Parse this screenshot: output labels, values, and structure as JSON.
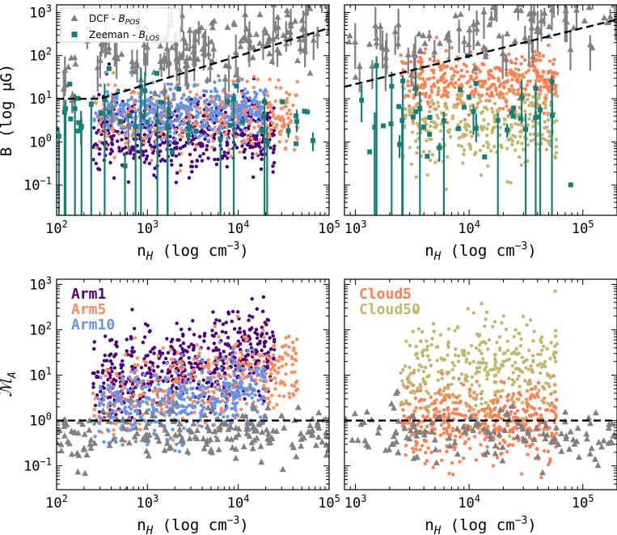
{
  "figure": {
    "panels": [
      "B vs nH (filaments)",
      "B vs nH (clouds)",
      "MA vs nH (filaments)",
      "MA vs nH (clouds)"
    ]
  },
  "colors": {
    "dcf": "#808080",
    "zeeman": "#127f79",
    "arm1": "#4b0082",
    "arm5": "#ff8a5b",
    "arm10": "#6495ed",
    "cloud5": "#ff7f50",
    "cloud50": "#c2b66b"
  },
  "chart_data": [
    {
      "id": "top-left",
      "type": "scatter",
      "title": "",
      "xlabel_base": "n",
      "xlabel_sub": "H",
      "xlabel_unit": " (log cm",
      "xlabel_sup": "−3",
      "xlabel_close": ")",
      "ylabel": "B (log μG)",
      "xscale": "log",
      "yscale": "log",
      "xlim": [
        100,
        100000
      ],
      "ylim": [
        0.02,
        1500
      ],
      "x_ticks": [
        {
          "v": 100,
          "m": "10",
          "e": "2"
        },
        {
          "v": 1000,
          "m": "10",
          "e": "3"
        },
        {
          "v": 10000,
          "m": "10",
          "e": "4"
        },
        {
          "v": 100000,
          "m": "10",
          "e": "5"
        }
      ],
      "y_ticks": [
        {
          "v": 0.1,
          "m": "10",
          "e": "−1"
        },
        {
          "v": 1,
          "m": "10",
          "e": "0"
        },
        {
          "v": 10,
          "m": "10",
          "e": "1"
        },
        {
          "v": 100,
          "m": "10",
          "e": "2"
        },
        {
          "v": 1000,
          "m": "10",
          "e": "3"
        }
      ],
      "legend": {
        "position": "top-left",
        "entries": [
          {
            "label": "DCF - ",
            "sym": "B",
            "sub": "POS",
            "marker": "triangle",
            "color": "dcf"
          },
          {
            "label": "Zeeman - ",
            "sym": "B",
            "sub": "LOS",
            "marker": "square",
            "color": "zeeman"
          }
        ]
      },
      "reference_line": {
        "type": "crutcher",
        "B0": 10,
        "n0": 300,
        "kappa": 0.65,
        "style": "dashed"
      },
      "series": [
        {
          "name": "Arm1",
          "color": "arm1",
          "marker": "circle",
          "n": 520,
          "x_range": [
            250,
            25000
          ],
          "y_median": 1.6,
          "y_spread": 0.45,
          "seed": 11
        },
        {
          "name": "Arm5",
          "color": "arm5",
          "marker": "circle",
          "n": 420,
          "x_range": [
            250,
            45000
          ],
          "y_median": 4.0,
          "y_spread": 0.35,
          "seed": 23
        },
        {
          "name": "Arm10",
          "color": "arm10",
          "marker": "circle",
          "n": 420,
          "x_range": [
            250,
            20000
          ],
          "y_median": 5.0,
          "y_spread": 0.3,
          "seed": 37
        },
        {
          "name": "DCF - BPOS",
          "color": "dcf",
          "marker": "triangle",
          "n": 180,
          "x_range": [
            100,
            100000
          ],
          "y_median": 80,
          "y_spread": 0.45,
          "seed": 51,
          "error_bars": true
        },
        {
          "name": "Zeeman - BLOS",
          "color": "zeeman",
          "marker": "square",
          "n": 55,
          "x_range": [
            100,
            80000
          ],
          "y_median": 4,
          "y_spread": 0.5,
          "seed": 67,
          "error_bars": true
        }
      ]
    },
    {
      "id": "top-right",
      "type": "scatter",
      "xlabel_base": "n",
      "xlabel_sub": "H",
      "xlabel_unit": " (log cm",
      "xlabel_sup": "−3",
      "xlabel_close": ")",
      "ylabel": "",
      "xscale": "log",
      "yscale": "log",
      "xlim": [
        800,
        200000
      ],
      "ylim": [
        0.02,
        1500
      ],
      "x_ticks": [
        {
          "v": 1000,
          "m": "10",
          "e": "3"
        },
        {
          "v": 10000,
          "m": "10",
          "e": "4"
        },
        {
          "v": 100000,
          "m": "10",
          "e": "5"
        }
      ],
      "y_ticks": [],
      "reference_line": {
        "type": "crutcher",
        "B0": 10,
        "n0": 300,
        "kappa": 0.65,
        "style": "dashed"
      },
      "series": [
        {
          "name": "Cloud5",
          "color": "cloud5",
          "marker": "circle",
          "n": 420,
          "x_range": [
            2500,
            60000
          ],
          "y_median": 25,
          "y_spread": 0.35,
          "seed": 71
        },
        {
          "name": "Cloud50",
          "color": "cloud50",
          "marker": "circle",
          "n": 320,
          "x_range": [
            2500,
            60000
          ],
          "y_median": 2.5,
          "y_spread": 0.45,
          "seed": 83
        },
        {
          "name": "DCF - BPOS",
          "color": "dcf",
          "marker": "triangle",
          "n": 120,
          "x_range": [
            800,
            200000
          ],
          "y_median": 120,
          "y_spread": 0.45,
          "seed": 97,
          "error_bars": true
        },
        {
          "name": "Zeeman - BLOS",
          "color": "zeeman",
          "marker": "square",
          "n": 45,
          "x_range": [
            800,
            80000
          ],
          "y_median": 4,
          "y_spread": 0.5,
          "seed": 101,
          "error_bars": true
        }
      ]
    },
    {
      "id": "bottom-left",
      "type": "scatter",
      "xlabel_base": "n",
      "xlabel_sub": "H",
      "xlabel_unit": " (log cm",
      "xlabel_sup": "−3",
      "xlabel_close": ")",
      "ylabel_sym": "ℳ",
      "ylabel_sub": "A",
      "xscale": "log",
      "yscale": "log",
      "xlim": [
        100,
        100000
      ],
      "ylim": [
        0.03,
        1300
      ],
      "x_ticks": [
        {
          "v": 100,
          "m": "10",
          "e": "2"
        },
        {
          "v": 1000,
          "m": "10",
          "e": "3"
        },
        {
          "v": 10000,
          "m": "10",
          "e": "4"
        },
        {
          "v": 100000,
          "m": "10",
          "e": "5"
        }
      ],
      "y_ticks": [
        {
          "v": 0.1,
          "m": "10",
          "e": "−1"
        },
        {
          "v": 1,
          "m": "10",
          "e": "0"
        },
        {
          "v": 10,
          "m": "10",
          "e": "1"
        },
        {
          "v": 100,
          "m": "10",
          "e": "2"
        },
        {
          "v": 1000,
          "m": "10",
          "e": "3"
        }
      ],
      "reference_line": {
        "type": "horizontal",
        "y": 1.0,
        "style": "dashed"
      },
      "text_legend": [
        "Arm1",
        "Arm5",
        "Arm10"
      ],
      "series": [
        {
          "name": "Arm1",
          "color": "arm1",
          "marker": "circle",
          "n": 520,
          "x_range": [
            250,
            25000
          ],
          "y_median": 15,
          "y_spread": 0.5,
          "seed": 113
        },
        {
          "name": "Arm5",
          "color": "arm5",
          "marker": "circle",
          "n": 420,
          "x_range": [
            250,
            45000
          ],
          "y_median": 5,
          "y_spread": 0.45,
          "seed": 127
        },
        {
          "name": "Arm10",
          "color": "arm10",
          "marker": "circle",
          "n": 420,
          "x_range": [
            250,
            20000
          ],
          "y_median": 2.5,
          "y_spread": 0.4,
          "seed": 131
        },
        {
          "name": "DCF",
          "color": "dcf",
          "marker": "triangle",
          "n": 200,
          "x_range": [
            100,
            100000
          ],
          "y_median": 0.5,
          "y_spread": 0.3,
          "seed": 139
        }
      ]
    },
    {
      "id": "bottom-right",
      "type": "scatter",
      "xlabel_base": "n",
      "xlabel_sub": "H",
      "xlabel_unit": " (log cm",
      "xlabel_sup": "−3",
      "xlabel_close": ")",
      "ylabel": "",
      "xscale": "log",
      "yscale": "log",
      "xlim": [
        800,
        200000
      ],
      "ylim": [
        0.03,
        1300
      ],
      "x_ticks": [
        {
          "v": 1000,
          "m": "10",
          "e": "3"
        },
        {
          "v": 10000,
          "m": "10",
          "e": "4"
        },
        {
          "v": 100000,
          "m": "10",
          "e": "5"
        }
      ],
      "y_ticks": [],
      "reference_line": {
        "type": "horizontal",
        "y": 1.0,
        "style": "dashed"
      },
      "text_legend": [
        "Cloud5",
        "Cloud50"
      ],
      "series": [
        {
          "name": "Cloud5",
          "color": "cloud5",
          "marker": "circle",
          "n": 480,
          "x_range": [
            2500,
            60000
          ],
          "y_median": 1.0,
          "y_spread": 0.45,
          "seed": 149
        },
        {
          "name": "Cloud50",
          "color": "cloud50",
          "marker": "circle",
          "n": 320,
          "x_range": [
            2500,
            60000
          ],
          "y_median": 15,
          "y_spread": 0.5,
          "seed": 157
        },
        {
          "name": "DCF",
          "color": "dcf",
          "marker": "triangle",
          "n": 140,
          "x_range": [
            800,
            200000
          ],
          "y_median": 0.5,
          "y_spread": 0.3,
          "seed": 163
        }
      ]
    }
  ]
}
